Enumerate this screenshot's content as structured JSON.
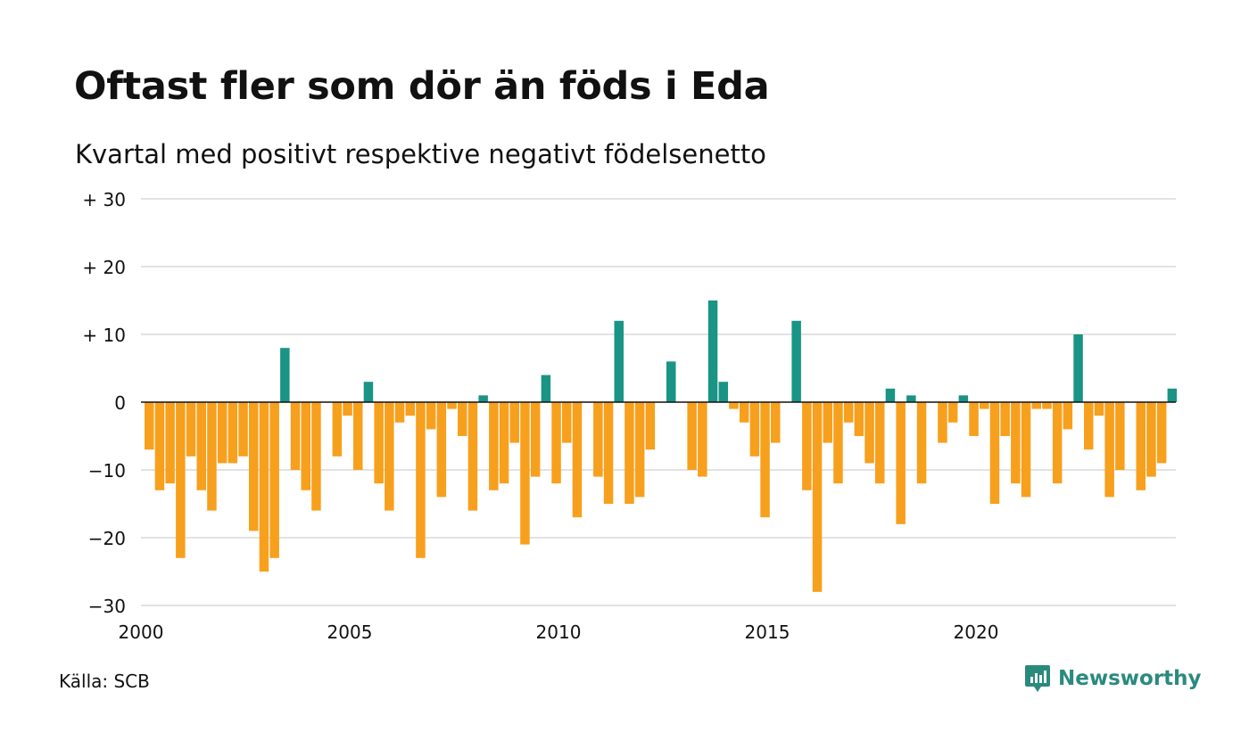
{
  "title": "Oftast fler som dör än föds i Eda",
  "subtitle": "Kvartal med positivt respektive negativt födelsenetto",
  "source": "Källa: SCB",
  "brand": {
    "name": "Newsworthy",
    "icon": "newsworthy-logo-icon"
  },
  "colors": {
    "positive": "#1a9484",
    "negative": "#f7a01d",
    "grid": "#e2e2e2",
    "zero": "#111111"
  },
  "chart_data": {
    "type": "bar",
    "title": "Oftast fler som dör än föds i Eda",
    "subtitle": "Kvartal med positivt respektive negativt födelsenetto",
    "xlabel": "",
    "ylabel": "",
    "ylim": [
      -30,
      30
    ],
    "yticks": [
      30,
      20,
      10,
      0,
      -10,
      -20,
      -30
    ],
    "ytick_labels": [
      "+ 30",
      "+ 20",
      "+ 10",
      "0",
      "−10",
      "−20",
      "−30"
    ],
    "xticks": [
      2000,
      2005,
      2010,
      2015,
      2020
    ],
    "xtick_labels": [
      "2000",
      "2005",
      "2010",
      "2015",
      "2020"
    ],
    "x_start_year": 2000,
    "quarters_per_year": 4,
    "grid": true,
    "values": [
      -7,
      -13,
      -12,
      -23,
      -8,
      -13,
      -16,
      -9,
      -9,
      -8,
      -19,
      -25,
      -23,
      8,
      -10,
      -13,
      -16,
      0,
      -8,
      -2,
      -10,
      3,
      -12,
      -16,
      -3,
      -2,
      -23,
      -4,
      -14,
      -1,
      -5,
      -16,
      1,
      -13,
      -12,
      -6,
      -21,
      -11,
      4,
      -12,
      -6,
      -17,
      0,
      -11,
      -15,
      12,
      -15,
      -14,
      -7,
      0,
      6,
      0,
      -10,
      -11,
      15,
      3,
      -1,
      -3,
      -8,
      -17,
      -6,
      0,
      12,
      -13,
      -28,
      -6,
      -12,
      -3,
      -5,
      -9,
      -12,
      2,
      -18,
      1,
      -12,
      0,
      -6,
      -3,
      1,
      -5,
      -1,
      -15,
      -5,
      -12,
      -14,
      -1,
      -1,
      -12,
      -4,
      10,
      -7,
      -2,
      -14,
      -10,
      0,
      -13,
      -11,
      -9,
      2
    ]
  }
}
